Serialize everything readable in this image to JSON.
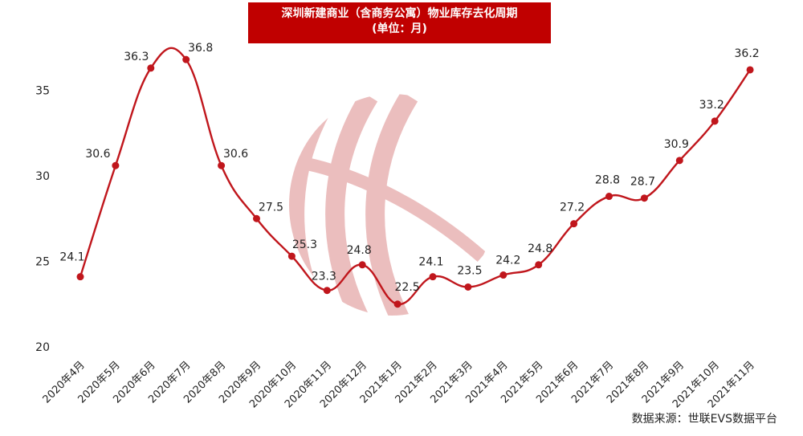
{
  "colors": {
    "accent": "#c00000",
    "line": "#c0161c",
    "watermark": "#e8b3b3",
    "text": "#222222"
  },
  "chart_data": {
    "type": "line",
    "title": "深圳新建商业（含商务公寓）物业库存去化周期",
    "subtitle": "(单位：月)",
    "xlabel": "",
    "ylabel": "",
    "categories": [
      "2020年4月",
      "2020年5月",
      "2020年6月",
      "2020年7月",
      "2020年8月",
      "2020年9月",
      "2020年10月",
      "2020年11月",
      "2020年12月",
      "2021年1月",
      "2021年2月",
      "2021年3月",
      "2021年4月",
      "2021年5月",
      "2021年6月",
      "2021年7月",
      "2021年8月",
      "2021年9月",
      "2021年10月",
      "2021年11月"
    ],
    "values": [
      24.1,
      30.6,
      36.3,
      36.8,
      30.6,
      27.5,
      25.3,
      23.3,
      24.8,
      22.5,
      24.1,
      23.5,
      24.2,
      24.8,
      27.2,
      28.8,
      28.7,
      30.9,
      33.2,
      36.2
    ],
    "labels": [
      "24.1",
      "30.6",
      "36.3",
      "36.8",
      "30.6",
      "27.5",
      "25.3",
      "23.3",
      "24.8",
      "22.5",
      "24.1",
      "23.5",
      "24.2",
      "24.8",
      "27.2",
      "28.8",
      "28.7",
      "30.9",
      "33.2",
      "36.2"
    ],
    "yticks": [
      20,
      25,
      30,
      35
    ],
    "ylim": [
      20,
      38
    ],
    "grid": false,
    "legend": "none"
  },
  "source": "数据来源：世联EVS数据平台"
}
